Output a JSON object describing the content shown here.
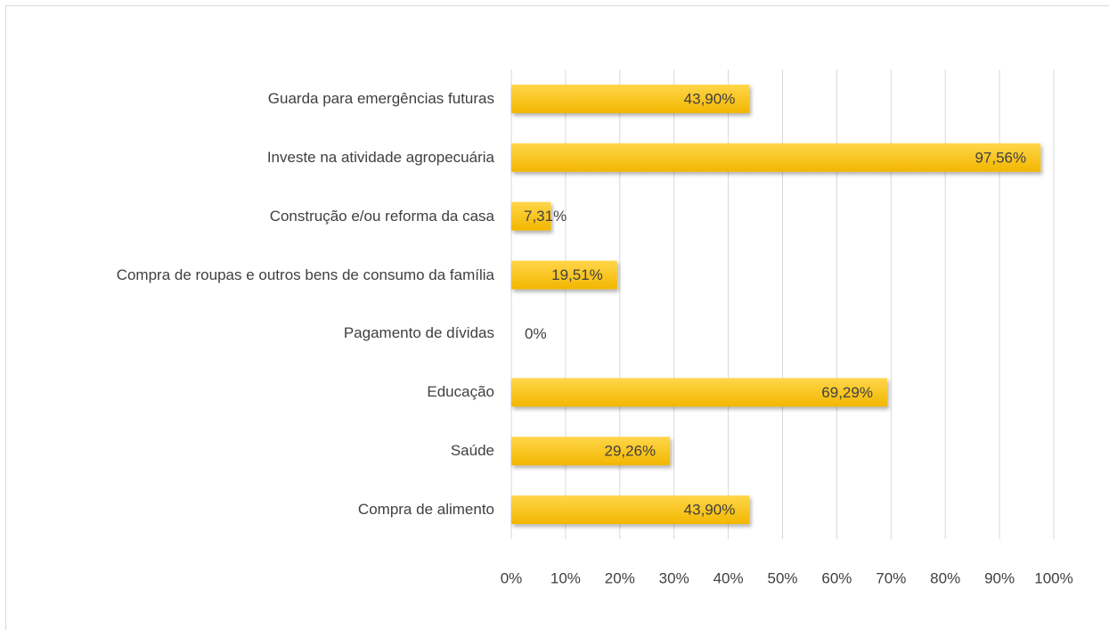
{
  "chart_data": {
    "type": "bar",
    "orientation": "horizontal",
    "categories": [
      "Guarda para emergências futuras",
      "Investe na atividade agropecuária",
      "Construção e/ou reforma da casa",
      "Compra de roupas e outros bens de consumo da família",
      "Pagamento de dívidas",
      "Educação",
      "Saúde",
      "Compra de alimento"
    ],
    "values": [
      43.9,
      97.56,
      7.31,
      19.51,
      0,
      69.29,
      29.26,
      43.9
    ],
    "value_labels": [
      "43,90%",
      "97,56%",
      "7,31%",
      "19,51%",
      "0%",
      "69,29%",
      "29,26%",
      "43,90%"
    ],
    "color": "#ffc000",
    "xlim": [
      0,
      100
    ],
    "xticks": [
      {
        "value": 0,
        "label": "0%"
      },
      {
        "value": 10,
        "label": "10%"
      },
      {
        "value": 20,
        "label": "20%"
      },
      {
        "value": 30,
        "label": "30%"
      },
      {
        "value": 40,
        "label": "40%"
      },
      {
        "value": 50,
        "label": "50%"
      },
      {
        "value": 60,
        "label": "60%"
      },
      {
        "value": 70,
        "label": "70%"
      },
      {
        "value": 80,
        "label": "80%"
      },
      {
        "value": 90,
        "label": "90%"
      },
      {
        "value": 100,
        "label": "100%"
      }
    ],
    "grid": true
  }
}
